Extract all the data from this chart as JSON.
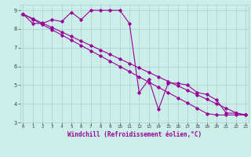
{
  "title": "Windchill (Refroidissement éolien,°C)",
  "bg_color": "#cceee8",
  "grid_color": "#aacccc",
  "line_color": "#990099",
  "x_values": [
    0,
    1,
    2,
    3,
    4,
    5,
    6,
    7,
    8,
    9,
    10,
    11,
    12,
    13,
    14,
    15,
    16,
    17,
    18,
    19,
    20,
    21,
    22,
    23
  ],
  "series1": [
    8.8,
    8.3,
    8.3,
    8.5,
    8.4,
    8.9,
    8.5,
    9.0,
    9.0,
    9.0,
    9.0,
    8.3,
    4.6,
    5.3,
    3.7,
    5.1,
    5.1,
    5.0,
    4.6,
    4.5,
    4.2,
    3.5,
    3.5,
    3.4
  ],
  "series2": [
    8.8,
    8.56,
    8.32,
    8.08,
    7.84,
    7.6,
    7.36,
    7.12,
    6.88,
    6.64,
    6.4,
    6.16,
    5.92,
    5.68,
    5.44,
    5.2,
    4.96,
    4.72,
    4.48,
    4.24,
    4.0,
    3.76,
    3.52,
    3.4
  ],
  "series3": [
    8.8,
    8.52,
    8.24,
    7.96,
    7.68,
    7.4,
    7.12,
    6.84,
    6.56,
    6.28,
    6.0,
    5.72,
    5.44,
    5.16,
    4.88,
    4.6,
    4.32,
    4.04,
    3.76,
    3.48,
    3.4,
    3.4,
    3.4,
    3.4
  ],
  "ylim": [
    3.0,
    9.3
  ],
  "xlim": [
    -0.3,
    23.3
  ],
  "yticks": [
    3,
    4,
    5,
    6,
    7,
    8,
    9
  ],
  "xticks": [
    0,
    1,
    2,
    3,
    4,
    5,
    6,
    7,
    8,
    9,
    10,
    11,
    12,
    13,
    14,
    15,
    16,
    17,
    18,
    19,
    20,
    21,
    22,
    23
  ]
}
